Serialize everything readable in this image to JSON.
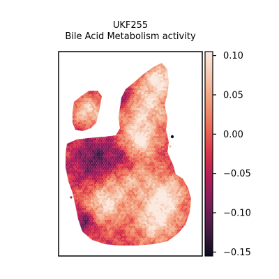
{
  "chart_data": {
    "type": "heatmap",
    "title_line1": "UKF255",
    "title_line2": "Bile Acid Metabolism activity",
    "xlabel": "",
    "ylabel": "",
    "grid": false,
    "colormap": "rocket",
    "colorbar": {
      "range": [
        -0.155,
        0.105
      ],
      "ticks": [
        0.1,
        0.05,
        0.0,
        -0.05,
        -0.1,
        -0.15
      ],
      "tick_labels": [
        "0.10",
        "0.05",
        "0.00",
        "−0.05",
        "−0.10",
        "−0.15"
      ]
    }
  }
}
